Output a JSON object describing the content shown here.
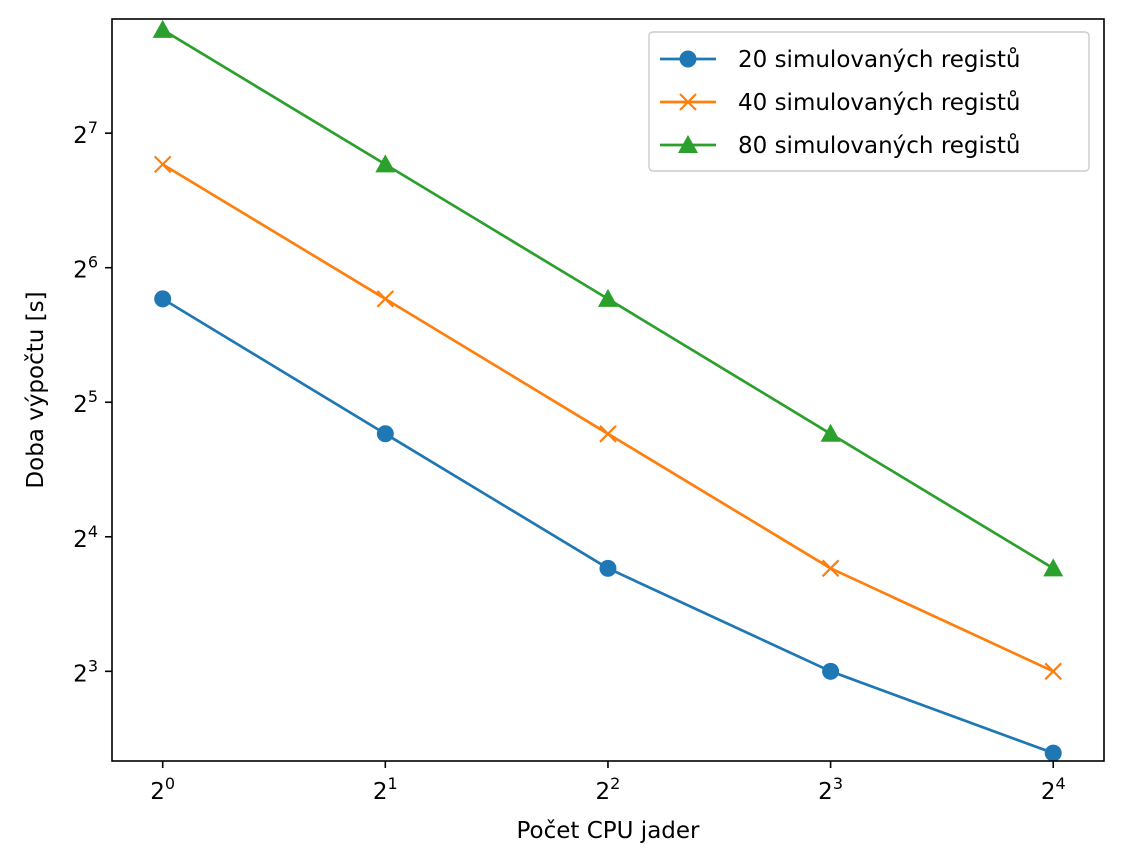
{
  "chart_data": {
    "type": "line",
    "title": "",
    "xlabel": "Počet CPU jader",
    "ylabel": "Doba výpočtu [s]",
    "xscale": "log2",
    "yscale": "log2",
    "xlim": [
      0.854,
      18.74
    ],
    "ylim": [
      5.04,
      230.5
    ],
    "x": [
      1,
      2,
      4,
      8,
      16
    ],
    "x_ticks": [
      {
        "base": "2",
        "exp": "0",
        "value": 1
      },
      {
        "base": "2",
        "exp": "1",
        "value": 2
      },
      {
        "base": "2",
        "exp": "2",
        "value": 4
      },
      {
        "base": "2",
        "exp": "3",
        "value": 8
      },
      {
        "base": "2",
        "exp": "4",
        "value": 16
      }
    ],
    "y_ticks": [
      {
        "base": "2",
        "exp": "3",
        "value": 8
      },
      {
        "base": "2",
        "exp": "4",
        "value": 16
      },
      {
        "base": "2",
        "exp": "5",
        "value": 32
      },
      {
        "base": "2",
        "exp": "6",
        "value": 64
      },
      {
        "base": "2",
        "exp": "7",
        "value": 128
      }
    ],
    "grid": false,
    "legend_position": "top-right",
    "series": [
      {
        "name": "20 simulovaných registů",
        "color": "#1f77b4",
        "marker": "circle",
        "values": [
          54.5,
          27.2,
          13.6,
          8.0,
          5.25
        ]
      },
      {
        "name": "40 simulovaných registů",
        "color": "#ff7f0e",
        "marker": "x",
        "values": [
          109,
          54.5,
          27.2,
          13.6,
          8.0
        ]
      },
      {
        "name": "80 simulovaných registů",
        "color": "#2ca02c",
        "marker": "triangle",
        "values": [
          218,
          109,
          54.5,
          27.2,
          13.6
        ]
      }
    ]
  }
}
